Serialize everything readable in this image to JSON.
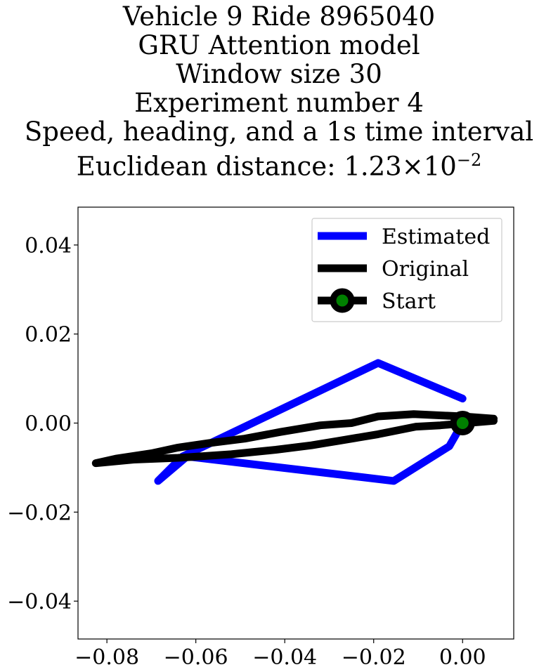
{
  "chart_data": {
    "type": "line",
    "title_lines": [
      "Vehicle 9 Ride 8965040",
      "GRU Attention model",
      "Window size 30",
      "Experiment number 4",
      "Speed, heading, and a 1s time interval"
    ],
    "metric_label": "Euclidean distance:",
    "metric_mantissa": "1.23",
    "metric_times": "×",
    "metric_base": "10",
    "metric_exponent": "−2",
    "xlim": [
      -0.0865,
      0.0115
    ],
    "ylim": [
      -0.0485,
      0.0485
    ],
    "xticks": [
      -0.08,
      -0.06,
      -0.04,
      -0.02,
      0.0
    ],
    "xtick_labels": [
      "−0.08",
      "−0.06",
      "−0.04",
      "−0.02",
      "0.00"
    ],
    "yticks": [
      0.04,
      0.02,
      0.0,
      -0.02,
      -0.04
    ],
    "ytick_labels": [
      "0.04",
      "0.02",
      "0.00",
      "−0.02",
      "−0.04"
    ],
    "grid": false,
    "legend_position": "top-right",
    "series": [
      {
        "name": "Estimated",
        "color": "#0000ff",
        "points": [
          [
            0.0,
            0.0
          ],
          [
            -0.003,
            -0.0052
          ],
          [
            -0.0155,
            -0.013
          ],
          [
            -0.062,
            -0.0075
          ],
          [
            -0.0685,
            -0.013
          ],
          [
            -0.063,
            -0.0075
          ],
          [
            -0.019,
            0.0135
          ],
          [
            0.0,
            0.0055
          ]
        ]
      },
      {
        "name": "Original",
        "color": "#000000",
        "points": [
          [
            0.0,
            0.0
          ],
          [
            0.007,
            0.0005
          ],
          [
            -0.005,
            -0.0005
          ],
          [
            -0.0105,
            -0.0008
          ],
          [
            -0.019,
            -0.0025
          ],
          [
            -0.028,
            -0.004
          ],
          [
            -0.034,
            -0.005
          ],
          [
            -0.042,
            -0.006
          ],
          [
            -0.052,
            -0.007
          ],
          [
            -0.064,
            -0.0078
          ],
          [
            -0.074,
            -0.0082
          ],
          [
            -0.0825,
            -0.009
          ],
          [
            -0.078,
            -0.008
          ],
          [
            -0.07,
            -0.0068
          ],
          [
            -0.064,
            -0.0055
          ],
          [
            -0.057,
            -0.0045
          ],
          [
            -0.049,
            -0.0035
          ],
          [
            -0.041,
            -0.002
          ],
          [
            -0.032,
            -0.0005
          ],
          [
            -0.025,
            0.0
          ],
          [
            -0.019,
            0.0015
          ],
          [
            -0.011,
            0.002
          ],
          [
            0.0,
            0.0015
          ],
          [
            0.007,
            0.001
          ]
        ]
      }
    ],
    "start_point": {
      "name": "Start",
      "x": 0.0,
      "y": 0.0,
      "marker_color": "#008000",
      "edge_color": "#000000"
    }
  }
}
